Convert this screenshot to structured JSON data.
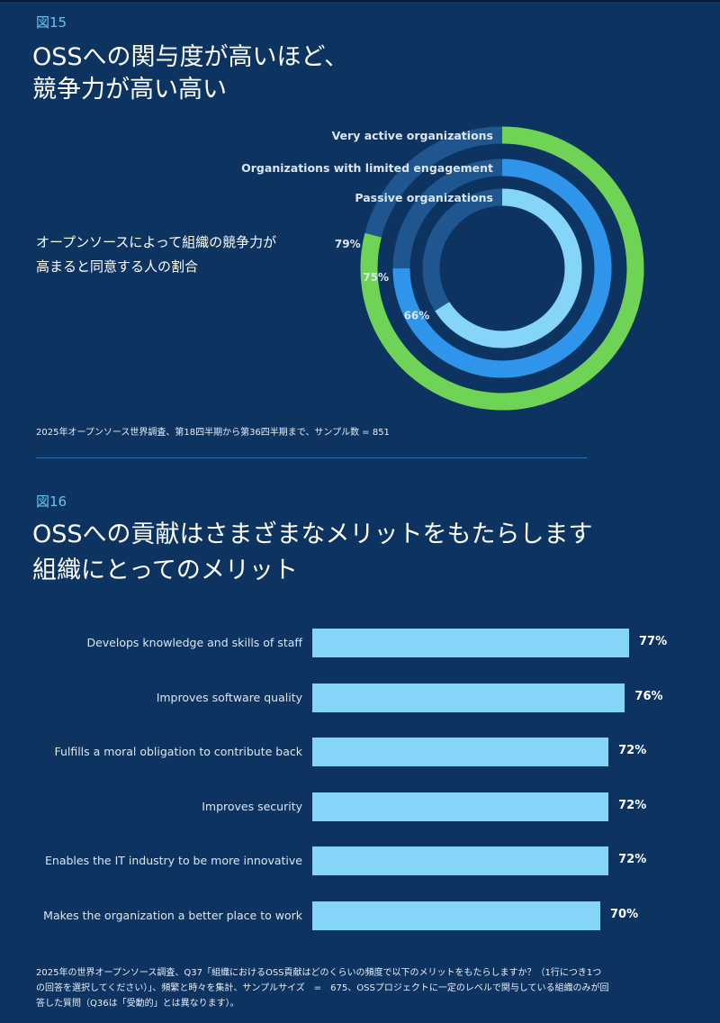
{
  "fig15": {
    "number": "図15",
    "title_line1": "OSSへの関与度が高いほど、",
    "title_line2": "競争力が高い高い",
    "subtitle_line1": "オープンソースによって組織の競争力が",
    "subtitle_line2": "高まると同意する人の割合",
    "note": "2025年オープンソース世界調査、第18四半期から第36四半期まで、サンプル数 = 851"
  },
  "fig16": {
    "number": "図16",
    "title_line1": "OSSへの貢献はさまざまなメリットをもたらします",
    "title_line2": "組織にとってのメリット",
    "note_line1": "2025年の世界オープンソース調査、Q37「組織におけるOSS貢献はどのくらいの頻度で以下のメリットをもたらしますか？（1行につき1つ",
    "note_line2": "の回答を選択してください）」、頻繁と時々を集計、サンプルサイズ　=　675、OSSプロジェクトに一定のレベルで関与している組織のみが回",
    "note_line3": "答した質問（Q36は「受動的」とは異なります）。"
  },
  "chart_data": [
    {
      "type": "radial-bar",
      "series": [
        {
          "name": "Very active organizations",
          "value": 79,
          "label": "79%",
          "color": "#6fd455"
        },
        {
          "name": "Organizations with limited engagement",
          "value": 75,
          "label": "75%",
          "color": "#2e95ea"
        },
        {
          "name": "Passive organizations",
          "value": 66,
          "label": "66%",
          "color": "#84d5f7"
        }
      ],
      "track_color": "#1f5690",
      "max": 100
    },
    {
      "type": "bar",
      "orientation": "horizontal",
      "categories": [
        "Develops knowledge and skills of staff",
        "Improves software quality",
        "Fulfills a moral obligation to contribute back",
        "Improves security",
        "Enables the IT industry to be more innovative",
        "Makes the organization a better place to work"
      ],
      "values": [
        77,
        76,
        72,
        72,
        72,
        70
      ],
      "value_labels": [
        "77%",
        "76%",
        "72%",
        "72%",
        "72%",
        "70%"
      ],
      "bar_color": "#84d5f7"
    }
  ]
}
